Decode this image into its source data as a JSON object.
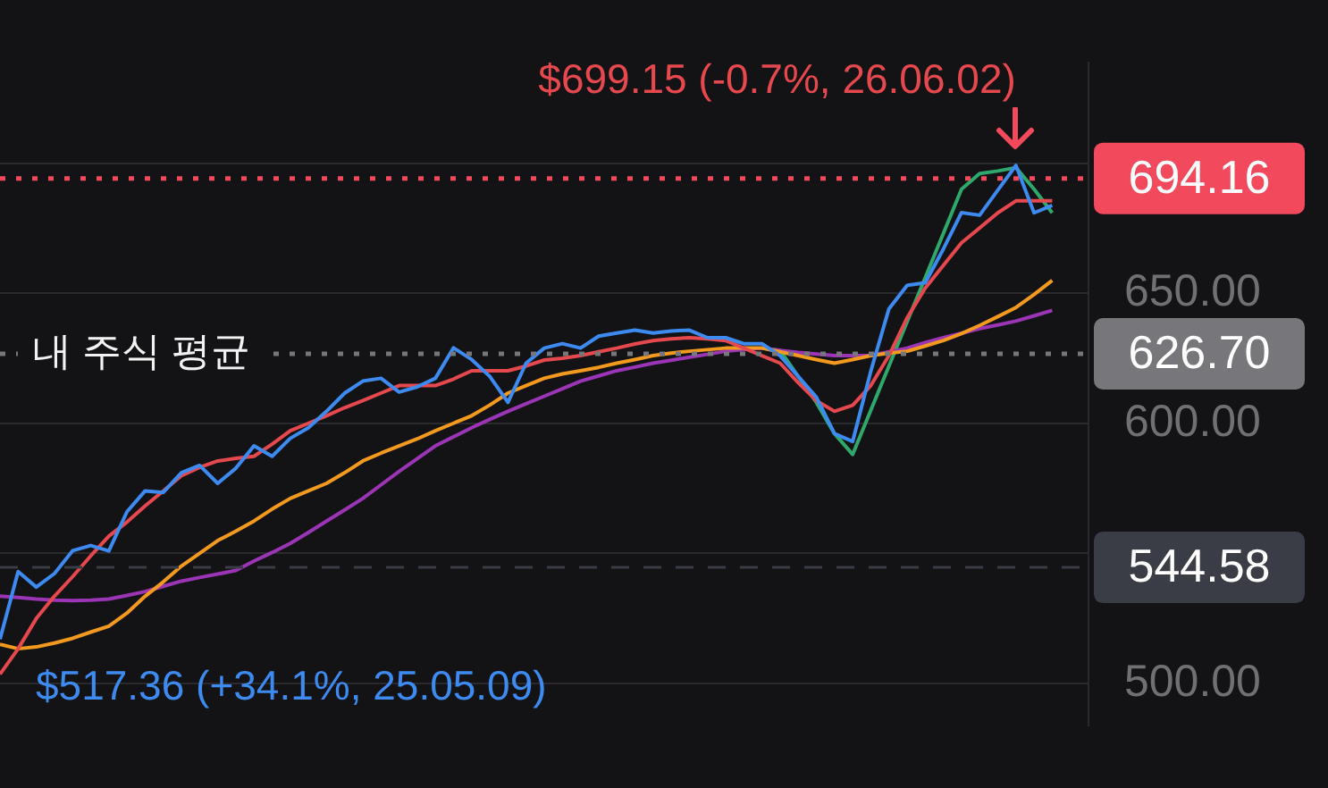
{
  "chart_data": {
    "type": "line",
    "categories": [
      null,
      null,
      null,
      null,
      null,
      null,
      null,
      null,
      null,
      null,
      null,
      null,
      null,
      null,
      null,
      null,
      null,
      null,
      null,
      null,
      null,
      null,
      null,
      null,
      null,
      null,
      null,
      null,
      null,
      null,
      null,
      null,
      null,
      null,
      null,
      null,
      null,
      null,
      null,
      null,
      null,
      null,
      null,
      null,
      null,
      null,
      null,
      null,
      null,
      null,
      null,
      null,
      null,
      null,
      null,
      null,
      null,
      null,
      null,
      null,
      null
    ],
    "series": [
      {
        "color": "#3d8bf0",
        "values": [
          517,
          543,
          537,
          542.2,
          551,
          553,
          550.9,
          566,
          574.0,
          573.4,
          581,
          583.8,
          576.9,
          582.7,
          591.3,
          587.3,
          594.2,
          598.3,
          604.6,
          611.6,
          616.2,
          617.3,
          612,
          614,
          617.3,
          629,
          624.5,
          618,
          608,
          623.1,
          628.9,
          630.6,
          628.9,
          633.5,
          634.7,
          635.8,
          634.7,
          635.5,
          635.8,
          632.9,
          632.9,
          630.6,
          630.6,
          626.0,
          618,
          610,
          596,
          593,
          620,
          644,
          653,
          654,
          667,
          681,
          680,
          689.6,
          699.15,
          680.9,
          683.8,
          null,
          null
        ]
      },
      {
        "color": "#e5484d",
        "values": [
          503.5,
          513.3,
          524.9,
          533.5,
          541,
          549,
          556.6,
          562,
          568.2,
          574,
          579.8,
          583,
          585.5,
          586.5,
          587.3,
          592,
          597.1,
          600,
          602.9,
          606,
          608.7,
          611.6,
          614.5,
          614.5,
          614.5,
          617,
          620.2,
          620.2,
          620.2,
          622,
          624.3,
          625,
          626.0,
          627.5,
          628.9,
          630.5,
          631.8,
          632.5,
          632.9,
          632.5,
          631.8,
          628.9,
          626.0,
          623.1,
          615.6,
          608.7,
          604.6,
          606.9,
          614.5,
          626.0,
          640.5,
          652.0,
          660.7,
          669.4,
          675.1,
          680.9,
          685.5,
          685.5,
          685.5,
          null,
          null
        ]
      },
      {
        "color": "#f39a1e",
        "values": [
          515.0,
          513.3,
          514,
          515.5,
          517.3,
          519.7,
          522,
          527,
          533.5,
          539,
          545.1,
          550,
          554.9,
          558.5,
          562.4,
          567,
          571.1,
          574,
          576.9,
          581,
          585.5,
          588.5,
          591.3,
          594,
          597.1,
          600,
          602.9,
          607,
          611.6,
          614.5,
          617.3,
          619,
          620.2,
          621.5,
          623.1,
          624.5,
          626.0,
          627,
          627.7,
          628.3,
          628.9,
          628.9,
          628.9,
          627.5,
          626.0,
          624.5,
          623.1,
          624.5,
          626.0,
          627,
          627.7,
          629.7,
          631.8,
          634.5,
          637.6,
          641,
          644.5,
          649.5,
          654.9,
          null,
          null
        ]
      },
      {
        "color": "#9b35b5",
        "values": [
          533.5,
          533,
          532.4,
          532,
          531.8,
          532,
          532.4,
          533.8,
          535.3,
          537.3,
          539.3,
          540.7,
          542,
          543.4,
          547,
          550.3,
          553.8,
          558,
          562.4,
          566.7,
          571.1,
          576.3,
          581.5,
          586.4,
          591.3,
          594.8,
          598.3,
          601.5,
          604.6,
          607.5,
          610.4,
          613.3,
          616.2,
          618.2,
          620.2,
          621.6,
          623.1,
          624.2,
          625.4,
          626.5,
          627.7,
          628.3,
          628.9,
          628,
          627.2,
          626.6,
          626.0,
          626.0,
          626.0,
          627.5,
          628.9,
          631,
          632.9,
          634.6,
          636.4,
          637.8,
          639.3,
          641.3,
          643.4,
          null,
          null
        ]
      },
      {
        "color": "#2ea86b",
        "values": [
          null,
          null,
          null,
          null,
          null,
          null,
          null,
          null,
          null,
          null,
          null,
          null,
          null,
          null,
          null,
          null,
          null,
          null,
          null,
          null,
          null,
          null,
          null,
          null,
          null,
          null,
          null,
          null,
          null,
          null,
          null,
          null,
          null,
          null,
          null,
          null,
          null,
          null,
          null,
          null,
          null,
          null,
          628.9,
          628,
          618,
          608,
          596,
          588,
          605,
          622,
          639,
          656,
          673,
          690,
          696,
          697,
          698.3,
          690,
          680.9,
          null,
          null
        ]
      }
    ],
    "ylim": [
      483.8,
      738.7
    ],
    "yticks": [
      {
        "value": 500,
        "label": "500.00"
      },
      {
        "value": 550,
        "label": null
      },
      {
        "value": 600,
        "label": "600.00"
      },
      {
        "value": 650,
        "label": "650.00"
      },
      {
        "value": 700,
        "label": null
      }
    ],
    "tick_labels": "y",
    "grid": "y",
    "ref_lines": [
      {
        "axis": "y",
        "value": 694.16,
        "label": "694.16",
        "color": "#f2495c",
        "line_style": "dotted"
      },
      {
        "axis": "y",
        "value": 626.7,
        "label": "626.70",
        "color": "#76767b",
        "line_style": "dotted"
      },
      {
        "axis": "y",
        "value": 544.58,
        "label": "544.58",
        "color": "#3a3d45",
        "line_style": "dashed"
      }
    ],
    "annotations": [
      "$699.15 (-0.7%, 26.06.02)",
      "$517.36 (+34.1%, 25.05.09)",
      "내 주식 평균"
    ]
  }
}
